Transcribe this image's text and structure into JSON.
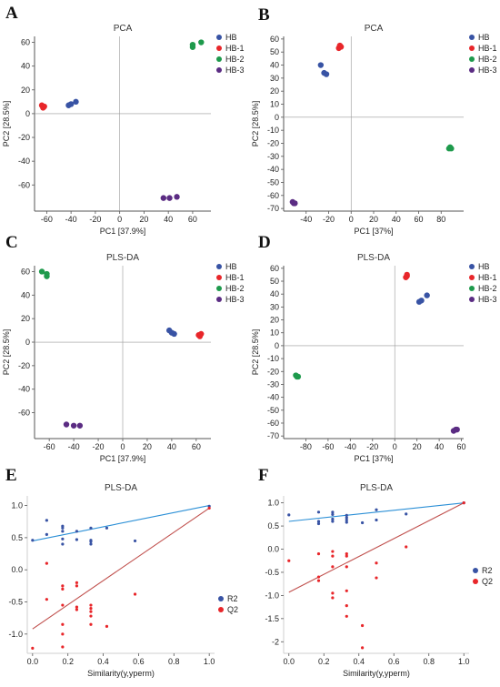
{
  "colors": {
    "HB": "#3853a4",
    "HB-1": "#e8262a",
    "HB-2": "#1e9a4c",
    "HB-3": "#5b2c83",
    "R2": "#3853a4",
    "Q2": "#e8262a",
    "R2_line": "#2b8fd6",
    "Q2_line": "#c0504d"
  },
  "chart_data": [
    {
      "panel": "A",
      "type": "scatter",
      "title": "PCA",
      "xlabel": "PC1 [37.9%]",
      "ylabel": "PC2 [28.5%]",
      "xlim": [
        -70,
        75
      ],
      "ylim": [
        -82,
        65
      ],
      "xticks": [
        -60,
        -40,
        -20,
        0,
        20,
        40,
        60
      ],
      "yticks": [
        -60,
        -40,
        -20,
        0,
        20,
        40,
        60
      ],
      "legend": "top-right",
      "series": [
        {
          "name": "HB",
          "points": [
            [
              -42,
              7
            ],
            [
              -40,
              8
            ],
            [
              -36,
              10
            ]
          ]
        },
        {
          "name": "HB-1",
          "points": [
            [
              -64,
              7
            ],
            [
              -63,
              5
            ],
            [
              -62,
              6
            ]
          ]
        },
        {
          "name": "HB-2",
          "points": [
            [
              60,
              56
            ],
            [
              60,
              58
            ],
            [
              67,
              60
            ]
          ]
        },
        {
          "name": "HB-3",
          "points": [
            [
              36,
              -71
            ],
            [
              41,
              -71
            ],
            [
              47,
              -70
            ]
          ]
        }
      ]
    },
    {
      "panel": "B",
      "type": "scatter",
      "title": "PCA",
      "xlabel": "PC1 [37%]",
      "ylabel": "PC2 [28.5%]",
      "xlim": [
        -60,
        100
      ],
      "ylim": [
        -72,
        62
      ],
      "xticks": [
        -40,
        -20,
        0,
        20,
        40,
        60,
        80
      ],
      "yticks": [
        -70,
        -60,
        -50,
        -40,
        -30,
        -20,
        -10,
        0,
        10,
        20,
        30,
        40,
        50,
        60
      ],
      "legend": "top-right",
      "series": [
        {
          "name": "HB",
          "points": [
            [
              -27,
              40
            ],
            [
              -24,
              34
            ],
            [
              -22,
              33
            ]
          ]
        },
        {
          "name": "HB-1",
          "points": [
            [
              -11,
              53
            ],
            [
              -10,
              55
            ],
            [
              -9,
              54
            ]
          ]
        },
        {
          "name": "HB-2",
          "points": [
            [
              87,
              -24
            ],
            [
              88,
              -23
            ],
            [
              89,
              -24
            ]
          ]
        },
        {
          "name": "HB-3",
          "points": [
            [
              -52,
              -65
            ],
            [
              -51,
              -66
            ],
            [
              -50,
              -66
            ]
          ]
        }
      ]
    },
    {
      "panel": "C",
      "type": "scatter",
      "title": "PLS-DA",
      "xlabel": "PC1 [37.9%]",
      "ylabel": "PC2 [28.5%]",
      "xlim": [
        -72,
        72
      ],
      "ylim": [
        -82,
        65
      ],
      "xticks": [
        -60,
        -40,
        -20,
        0,
        20,
        40,
        60
      ],
      "yticks": [
        -60,
        -40,
        -20,
        0,
        20,
        40,
        60
      ],
      "legend": "top-right",
      "series": [
        {
          "name": "HB",
          "points": [
            [
              38,
              10
            ],
            [
              42,
              7
            ],
            [
              40,
              8
            ]
          ]
        },
        {
          "name": "HB-1",
          "points": [
            [
              62,
              6
            ],
            [
              63,
              5
            ],
            [
              64,
              7
            ]
          ]
        },
        {
          "name": "HB-2",
          "points": [
            [
              -66,
              60
            ],
            [
              -62,
              58
            ],
            [
              -62,
              56
            ]
          ]
        },
        {
          "name": "HB-3",
          "points": [
            [
              -46,
              -70
            ],
            [
              -40,
              -71
            ],
            [
              -35,
              -71
            ]
          ]
        }
      ]
    },
    {
      "panel": "D",
      "type": "scatter",
      "title": "PLS-DA",
      "xlabel": "PC1 [37%]",
      "ylabel": "PC2 [28.5%]",
      "xlim": [
        -100,
        62
      ],
      "ylim": [
        -72,
        62
      ],
      "xticks": [
        -80,
        -60,
        -40,
        -20,
        0,
        20,
        40,
        60
      ],
      "yticks": [
        -70,
        -60,
        -50,
        -40,
        -30,
        -20,
        -10,
        0,
        10,
        20,
        30,
        40,
        50,
        60
      ],
      "legend": "top-right",
      "series": [
        {
          "name": "HB",
          "points": [
            [
              22,
              34
            ],
            [
              24,
              35
            ],
            [
              29,
              39
            ]
          ]
        },
        {
          "name": "HB-1",
          "points": [
            [
              10,
              53
            ],
            [
              11,
              55
            ],
            [
              11,
              54
            ]
          ]
        },
        {
          "name": "HB-2",
          "points": [
            [
              -89,
              -23
            ],
            [
              -88,
              -24
            ],
            [
              -87,
              -24
            ]
          ]
        },
        {
          "name": "HB-3",
          "points": [
            [
              53,
              -66
            ],
            [
              55,
              -65
            ],
            [
              56,
              -65
            ]
          ]
        }
      ]
    },
    {
      "panel": "E",
      "type": "scatter",
      "title": "PLS-DA",
      "xlabel": "Similarity(y,yperm)",
      "ylabel": "",
      "xlim": [
        -0.03,
        1.03
      ],
      "ylim": [
        -1.3,
        1.15
      ],
      "xticks": [
        0,
        0.2,
        0.4,
        0.6,
        0.8,
        1
      ],
      "yticks": [
        -1,
        -0.5,
        0,
        0.5,
        1
      ],
      "legend": "right",
      "lines": [
        {
          "name": "R2",
          "from": [
            0,
            0.45
          ],
          "to": [
            1,
            1.0
          ]
        },
        {
          "name": "Q2",
          "from": [
            0,
            -0.92
          ],
          "to": [
            1,
            0.96
          ]
        }
      ],
      "series": [
        {
          "name": "R2",
          "points": [
            [
              0,
              0.46
            ],
            [
              0.08,
              0.77
            ],
            [
              0.08,
              0.55
            ],
            [
              0.17,
              0.68
            ],
            [
              0.17,
              0.65
            ],
            [
              0.17,
              0.6
            ],
            [
              0.17,
              0.48
            ],
            [
              0.17,
              0.4
            ],
            [
              0.25,
              0.6
            ],
            [
              0.25,
              0.47
            ],
            [
              0.33,
              0.65
            ],
            [
              0.33,
              0.46
            ],
            [
              0.33,
              0.44
            ],
            [
              0.33,
              0.4
            ],
            [
              0.42,
              0.65
            ],
            [
              0.58,
              0.45
            ],
            [
              1,
              0.99
            ]
          ]
        },
        {
          "name": "Q2",
          "points": [
            [
              0,
              -1.22
            ],
            [
              0.08,
              0.1
            ],
            [
              0.08,
              -0.46
            ],
            [
              0.17,
              -0.25
            ],
            [
              0.17,
              -0.3
            ],
            [
              0.17,
              -0.55
            ],
            [
              0.17,
              -0.85
            ],
            [
              0.17,
              -1.0
            ],
            [
              0.17,
              -1.2
            ],
            [
              0.25,
              -0.2
            ],
            [
              0.25,
              -0.25
            ],
            [
              0.25,
              -0.58
            ],
            [
              0.25,
              -0.62
            ],
            [
              0.33,
              -0.55
            ],
            [
              0.33,
              -0.6
            ],
            [
              0.33,
              -0.65
            ],
            [
              0.33,
              -0.72
            ],
            [
              0.33,
              -0.85
            ],
            [
              0.42,
              -0.88
            ],
            [
              0.58,
              -0.38
            ],
            [
              1,
              0.96
            ]
          ]
        }
      ]
    },
    {
      "panel": "F",
      "type": "scatter",
      "title": "PLS-DA",
      "xlabel": "Similarity(y,yperm)",
      "ylabel": "",
      "xlim": [
        -0.03,
        1.03
      ],
      "ylim": [
        -2.25,
        1.15
      ],
      "xticks": [
        0,
        0.2,
        0.4,
        0.6,
        0.8,
        1
      ],
      "yticks": [
        -2,
        -1.5,
        -1,
        -0.5,
        0,
        0.5,
        1
      ],
      "legend": "right",
      "lines": [
        {
          "name": "R2",
          "from": [
            0,
            0.6
          ],
          "to": [
            1,
            1.0
          ]
        },
        {
          "name": "Q2",
          "from": [
            0,
            -0.93
          ],
          "to": [
            1,
            1.0
          ]
        }
      ],
      "series": [
        {
          "name": "R2",
          "points": [
            [
              0,
              0.74
            ],
            [
              0.17,
              0.8
            ],
            [
              0.17,
              0.6
            ],
            [
              0.17,
              0.55
            ],
            [
              0.25,
              0.8
            ],
            [
              0.25,
              0.75
            ],
            [
              0.25,
              0.65
            ],
            [
              0.25,
              0.6
            ],
            [
              0.33,
              0.73
            ],
            [
              0.33,
              0.68
            ],
            [
              0.33,
              0.63
            ],
            [
              0.33,
              0.58
            ],
            [
              0.42,
              0.57
            ],
            [
              0.5,
              0.85
            ],
            [
              0.5,
              0.63
            ],
            [
              0.67,
              0.76
            ],
            [
              1,
              1.0
            ]
          ]
        },
        {
          "name": "Q2",
          "points": [
            [
              0,
              -0.25
            ],
            [
              0.17,
              -0.1
            ],
            [
              0.17,
              -0.6
            ],
            [
              0.17,
              -0.68
            ],
            [
              0.25,
              -0.05
            ],
            [
              0.25,
              -0.15
            ],
            [
              0.25,
              -0.38
            ],
            [
              0.25,
              -0.95
            ],
            [
              0.25,
              -1.05
            ],
            [
              0.33,
              -0.1
            ],
            [
              0.33,
              -0.15
            ],
            [
              0.33,
              -0.38
            ],
            [
              0.33,
              -0.9
            ],
            [
              0.33,
              -1.22
            ],
            [
              0.33,
              -1.45
            ],
            [
              0.42,
              -1.65
            ],
            [
              0.42,
              -2.13
            ],
            [
              0.5,
              -0.3
            ],
            [
              0.5,
              -0.62
            ],
            [
              0.67,
              0.05
            ],
            [
              1,
              1.0
            ]
          ]
        }
      ]
    }
  ]
}
